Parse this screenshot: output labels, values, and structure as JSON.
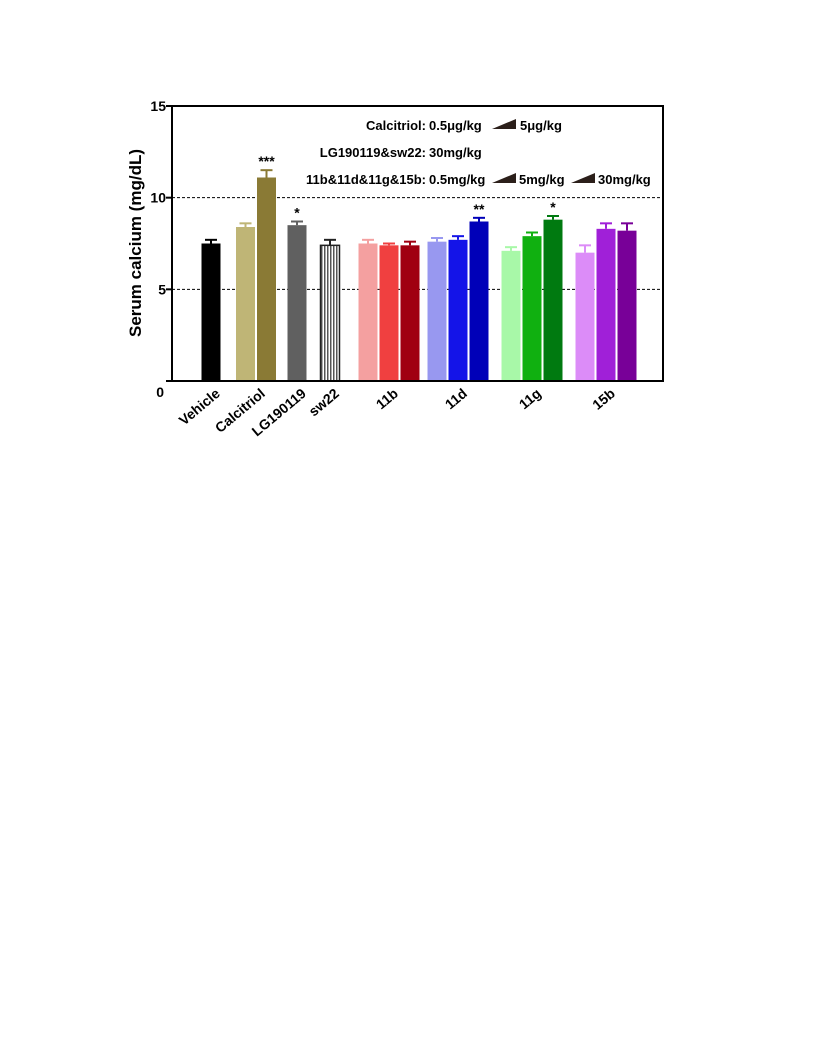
{
  "chart_data": {
    "type": "bar",
    "ylabel": "Serum calcium (mg/dL)",
    "xlabel": "",
    "ylim": [
      0,
      15
    ],
    "yticks": [
      "0",
      "5",
      "10",
      "15"
    ],
    "grid_lines_at": [
      5,
      10
    ],
    "categories": [
      "Vehicle",
      "Calcitriol",
      "LG190119",
      "sw22",
      "11b",
      "11d",
      "11g",
      "15b"
    ],
    "groups": [
      {
        "label": "Vehicle",
        "bars": [
          {
            "value": 7.5,
            "error": 0.2,
            "color": "#000000"
          }
        ]
      },
      {
        "label": "Calcitriol",
        "bars": [
          {
            "value": 8.4,
            "error": 0.2,
            "color": "#bfb576"
          },
          {
            "value": 11.1,
            "error": 0.4,
            "color": "#8a7a35",
            "sig": "***"
          }
        ]
      },
      {
        "label": "LG190119",
        "bars": [
          {
            "value": 8.5,
            "error": 0.2,
            "color": "#606060",
            "sig": "*"
          }
        ]
      },
      {
        "label": "sw22",
        "bars": [
          {
            "value": 7.4,
            "error": 0.3,
            "color": "#d0d0d0",
            "hatched": true
          }
        ]
      },
      {
        "label": "11b",
        "bars": [
          {
            "value": 7.5,
            "error": 0.2,
            "color": "#f4a0a0"
          },
          {
            "value": 7.4,
            "error": 0.1,
            "color": "#f04040"
          },
          {
            "value": 7.4,
            "error": 0.2,
            "color": "#a00010"
          }
        ]
      },
      {
        "label": "11d",
        "bars": [
          {
            "value": 7.6,
            "error": 0.2,
            "color": "#9898f0"
          },
          {
            "value": 7.7,
            "error": 0.2,
            "color": "#1414e8"
          },
          {
            "value": 8.7,
            "error": 0.2,
            "color": "#0000b8",
            "sig": "**"
          }
        ]
      },
      {
        "label": "11g",
        "bars": [
          {
            "value": 7.1,
            "error": 0.2,
            "color": "#a8f8a8"
          },
          {
            "value": 7.9,
            "error": 0.2,
            "color": "#10b010"
          },
          {
            "value": 8.8,
            "error": 0.2,
            "color": "#007a10",
            "sig": "*"
          }
        ]
      },
      {
        "label": "15b",
        "bars": [
          {
            "value": 7.0,
            "error": 0.4,
            "color": "#dc8cf8"
          },
          {
            "value": 8.3,
            "error": 0.3,
            "color": "#a020d8"
          },
          {
            "value": 8.2,
            "error": 0.4,
            "color": "#780098"
          }
        ]
      }
    ],
    "legend": {
      "rows": [
        {
          "label": "Calcitriol:",
          "items": [
            "0.5μg/kg",
            "5μg/kg"
          ]
        },
        {
          "label": "LG190119&sw22:",
          "items": [
            "30mg/kg"
          ]
        },
        {
          "label": "11b&11d&11g&15b:",
          "items": [
            "0.5mg/kg",
            "5mg/kg",
            "30mg/kg"
          ]
        }
      ],
      "placement": "top-right"
    }
  }
}
